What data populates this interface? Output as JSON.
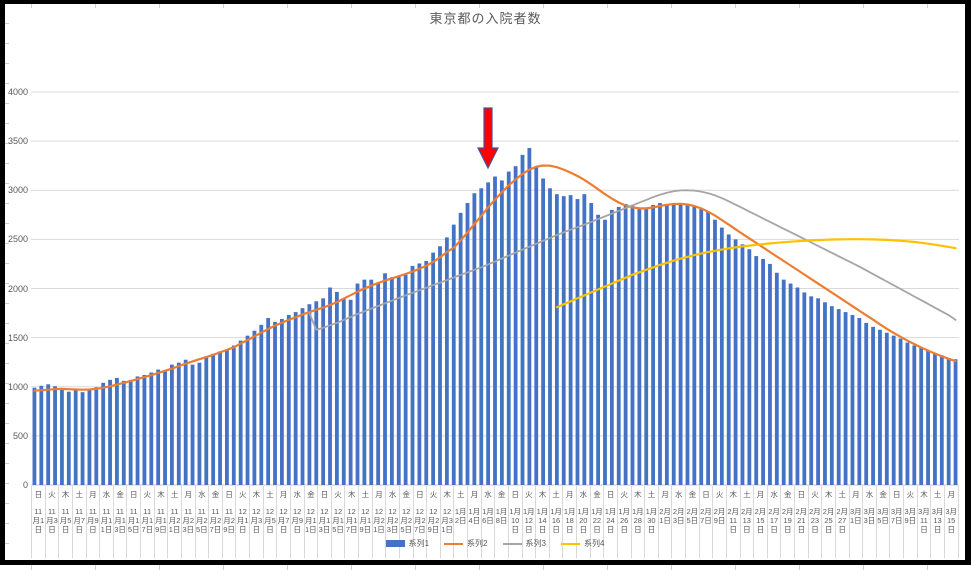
{
  "window": {
    "frame_color": "#000000",
    "background": "#ffffff"
  },
  "chart_data": {
    "type": "bar",
    "title": "東京都の入院者数",
    "xlabel": "",
    "ylabel": "",
    "ylim": [
      0,
      4000
    ],
    "y_step": 500,
    "yticks": [
      0,
      500,
      1000,
      1500,
      2000,
      2500,
      3000,
      3500,
      4000
    ],
    "grid": "horizontal",
    "legend_position": "bottom",
    "n_points": 135,
    "x_range": "2020年11月1日〜2021年3月15日 (毎日, 目盛ラベルは2日おき)",
    "x_labels": [
      {
        "w": "日",
        "d": "11月1日"
      },
      {
        "w": "火",
        "d": "11月3日"
      },
      {
        "w": "木",
        "d": "11月5日"
      },
      {
        "w": "土",
        "d": "11月7日"
      },
      {
        "w": "月",
        "d": "11月9日"
      },
      {
        "w": "水",
        "d": "11月11日"
      },
      {
        "w": "金",
        "d": "11月13日"
      },
      {
        "w": "日",
        "d": "11月15日"
      },
      {
        "w": "火",
        "d": "11月17日"
      },
      {
        "w": "木",
        "d": "11月19日"
      },
      {
        "w": "土",
        "d": "11月21日"
      },
      {
        "w": "月",
        "d": "11月23日"
      },
      {
        "w": "水",
        "d": "11月25日"
      },
      {
        "w": "金",
        "d": "11月27日"
      },
      {
        "w": "日",
        "d": "11月29日"
      },
      {
        "w": "火",
        "d": "12月1日"
      },
      {
        "w": "木",
        "d": "12月3日"
      },
      {
        "w": "土",
        "d": "12月5日"
      },
      {
        "w": "月",
        "d": "12月7日"
      },
      {
        "w": "水",
        "d": "12月9日"
      },
      {
        "w": "金",
        "d": "12月11日"
      },
      {
        "w": "日",
        "d": "12月13日"
      },
      {
        "w": "火",
        "d": "12月15日"
      },
      {
        "w": "木",
        "d": "12月17日"
      },
      {
        "w": "土",
        "d": "12月19日"
      },
      {
        "w": "月",
        "d": "12月21日"
      },
      {
        "w": "水",
        "d": "12月23日"
      },
      {
        "w": "金",
        "d": "12月25日"
      },
      {
        "w": "日",
        "d": "12月27日"
      },
      {
        "w": "火",
        "d": "12月29日"
      },
      {
        "w": "木",
        "d": "12月31日"
      },
      {
        "w": "土",
        "d": "1月2日"
      },
      {
        "w": "月",
        "d": "1月4日"
      },
      {
        "w": "水",
        "d": "1月6日"
      },
      {
        "w": "金",
        "d": "1月8日"
      },
      {
        "w": "日",
        "d": "1月10日"
      },
      {
        "w": "火",
        "d": "1月12日"
      },
      {
        "w": "木",
        "d": "1月14日"
      },
      {
        "w": "土",
        "d": "1月16日"
      },
      {
        "w": "月",
        "d": "1月18日"
      },
      {
        "w": "水",
        "d": "1月20日"
      },
      {
        "w": "金",
        "d": "1月22日"
      },
      {
        "w": "日",
        "d": "1月24日"
      },
      {
        "w": "火",
        "d": "1月26日"
      },
      {
        "w": "木",
        "d": "1月28日"
      },
      {
        "w": "土",
        "d": "1月30日"
      },
      {
        "w": "月",
        "d": "2月1日"
      },
      {
        "w": "水",
        "d": "2月3日"
      },
      {
        "w": "金",
        "d": "2月5日"
      },
      {
        "w": "日",
        "d": "2月7日"
      },
      {
        "w": "火",
        "d": "2月9日"
      },
      {
        "w": "木",
        "d": "2月11日"
      },
      {
        "w": "土",
        "d": "2月13日"
      },
      {
        "w": "月",
        "d": "2月15日"
      },
      {
        "w": "水",
        "d": "2月17日"
      },
      {
        "w": "金",
        "d": "2月19日"
      },
      {
        "w": "日",
        "d": "2月21日"
      },
      {
        "w": "火",
        "d": "2月23日"
      },
      {
        "w": "木",
        "d": "2月25日"
      },
      {
        "w": "土",
        "d": "2月27日"
      },
      {
        "w": "月",
        "d": "3月1日"
      },
      {
        "w": "水",
        "d": "3月3日"
      },
      {
        "w": "金",
        "d": "3月5日"
      },
      {
        "w": "日",
        "d": "3月7日"
      },
      {
        "w": "火",
        "d": "3月9日"
      },
      {
        "w": "木",
        "d": "3月11日"
      },
      {
        "w": "土",
        "d": "3月13日"
      },
      {
        "w": "月",
        "d": "3月15日"
      }
    ],
    "series": [
      {
        "name": "系列1",
        "kind": "bar",
        "color": "#4472C4",
        "start_index": 0,
        "values": [
          990,
          1010,
          1025,
          1005,
          985,
          950,
          965,
          945,
          965,
          995,
          1040,
          1070,
          1090,
          1060,
          1070,
          1105,
          1120,
          1145,
          1175,
          1155,
          1225,
          1245,
          1275,
          1225,
          1245,
          1310,
          1335,
          1360,
          1380,
          1420,
          1470,
          1520,
          1570,
          1630,
          1700,
          1660,
          1690,
          1730,
          1760,
          1800,
          1840,
          1870,
          1900,
          2010,
          1965,
          1900,
          1885,
          2050,
          2090,
          2090,
          2060,
          2155,
          2115,
          2120,
          2140,
          2230,
          2255,
          2280,
          2365,
          2430,
          2520,
          2650,
          2770,
          2870,
          2970,
          3020,
          3080,
          3140,
          3100,
          3190,
          3245,
          3360,
          3430,
          3240,
          3120,
          3020,
          2960,
          2940,
          2950,
          2910,
          2960,
          2870,
          2750,
          2700,
          2800,
          2830,
          2860,
          2840,
          2820,
          2810,
          2850,
          2870,
          2860,
          2850,
          2870,
          2855,
          2840,
          2815,
          2780,
          2700,
          2620,
          2550,
          2500,
          2450,
          2400,
          2330,
          2300,
          2250,
          2160,
          2090,
          2050,
          2010,
          1960,
          1920,
          1900,
          1860,
          1820,
          1790,
          1760,
          1730,
          1700,
          1650,
          1610,
          1580,
          1550,
          1520,
          1490,
          1450,
          1420,
          1400,
          1370,
          1340,
          1320,
          1290,
          1280
        ]
      },
      {
        "name": "系列2",
        "kind": "line",
        "color": "#ED7D31",
        "stroke_width": 2.2,
        "start_index": 0,
        "values": [
          960,
          965,
          970,
          975,
          978,
          975,
          972,
          970,
          972,
          978,
          990,
          1005,
          1022,
          1040,
          1058,
          1078,
          1098,
          1118,
          1140,
          1162,
          1185,
          1210,
          1235,
          1258,
          1280,
          1302,
          1325,
          1350,
          1375,
          1402,
          1440,
          1475,
          1512,
          1550,
          1588,
          1622,
          1652,
          1680,
          1708,
          1735,
          1760,
          1783,
          1806,
          1832,
          1862,
          1897,
          1932,
          1967,
          2000,
          2030,
          2056,
          2080,
          2103,
          2125,
          2148,
          2172,
          2200,
          2232,
          2270,
          2318,
          2372,
          2415,
          2490,
          2570,
          2655,
          2740,
          2825,
          2905,
          2980,
          3050,
          3110,
          3165,
          3210,
          3240,
          3252,
          3250,
          3235,
          3210,
          3180,
          3145,
          3105,
          3060,
          3010,
          2960,
          2915,
          2875,
          2845,
          2825,
          2815,
          2815,
          2825,
          2840,
          2852,
          2860,
          2862,
          2855,
          2840,
          2815,
          2782,
          2742,
          2697,
          2650,
          2603,
          2556,
          2510,
          2464,
          2418,
          2372,
          2326,
          2280,
          2234,
          2188,
          2142,
          2096,
          2050,
          2004,
          1958,
          1912,
          1866,
          1820,
          1774,
          1728,
          1682,
          1636,
          1590,
          1548,
          1508,
          1470,
          1434,
          1400,
          1368,
          1338,
          1310,
          1284,
          1260
        ]
      },
      {
        "name": "系列3",
        "kind": "line",
        "color": "#A5A5A5",
        "stroke_width": 1.8,
        "start_index": 40,
        "values": [
          1750,
          1580,
          1600,
          1625,
          1650,
          1680,
          1710,
          1740,
          1768,
          1795,
          1822,
          1849,
          1876,
          1903,
          1930,
          1956,
          1982,
          2008,
          2034,
          2060,
          2086,
          2112,
          2138,
          2164,
          2190,
          2216,
          2245,
          2275,
          2305,
          2335,
          2365,
          2395,
          2425,
          2455,
          2485,
          2515,
          2545,
          2572,
          2598,
          2624,
          2650,
          2678,
          2706,
          2734,
          2762,
          2790,
          2818,
          2846,
          2874,
          2902,
          2930,
          2955,
          2975,
          2990,
          2998,
          3000,
          2996,
          2986,
          2970,
          2948,
          2920,
          2888,
          2853,
          2818,
          2783,
          2748,
          2713,
          2678,
          2643,
          2608,
          2573,
          2538,
          2503,
          2468,
          2433,
          2398,
          2363,
          2328,
          2293,
          2258,
          2223,
          2185,
          2147,
          2109,
          2071,
          2033,
          1995,
          1957,
          1919,
          1881,
          1843,
          1805,
          1767,
          1729,
          1680
        ]
      },
      {
        "name": "系列4",
        "kind": "line",
        "color": "#FFC000",
        "stroke_width": 2.2,
        "start_index": 76,
        "values": [
          1810,
          1840,
          1870,
          1900,
          1930,
          1960,
          1990,
          2020,
          2050,
          2080,
          2110,
          2140,
          2165,
          2190,
          2215,
          2240,
          2262,
          2284,
          2304,
          2322,
          2340,
          2355,
          2370,
          2384,
          2396,
          2408,
          2418,
          2428,
          2437,
          2445,
          2452,
          2459,
          2465,
          2471,
          2476,
          2481,
          2486,
          2490,
          2493,
          2496,
          2499,
          2500,
          2501,
          2502,
          2502,
          2501,
          2500,
          2498,
          2495,
          2491,
          2486,
          2480,
          2473,
          2465,
          2456,
          2446,
          2435,
          2423,
          2410
        ]
      }
    ],
    "annotation": {
      "shape": "down-arrow",
      "fill": "#FF0000",
      "stroke": "#4353A4",
      "points_at_index": 66,
      "points_at_label": "1月7日付近"
    },
    "colors": {
      "grid": "#D9D9D9",
      "axis_text": "#595959",
      "title_text": "#595959"
    }
  }
}
